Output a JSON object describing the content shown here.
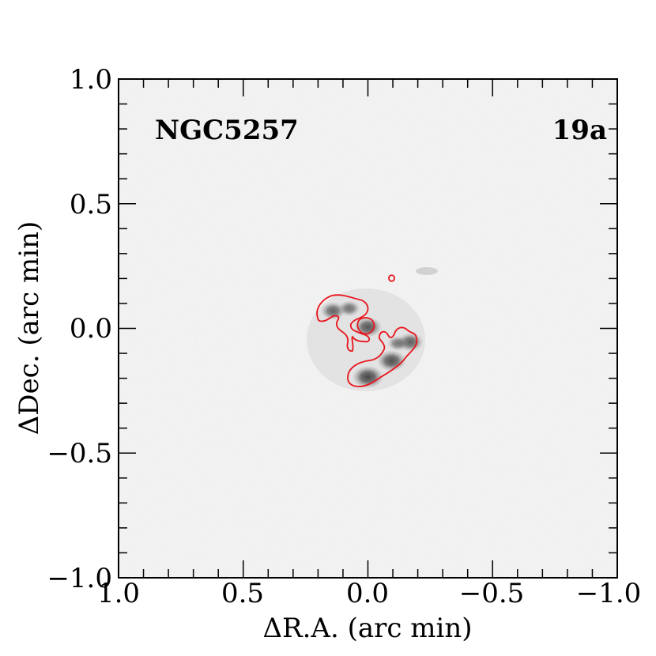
{
  "figure": {
    "object_name": "NGC5257",
    "panel_id": "19a",
    "x_axis": {
      "label": "ΔR.A. (arc min)",
      "range": [
        1.0,
        -1.0
      ],
      "ticks": [
        1.0,
        0.5,
        0.0,
        -0.5,
        -1.0
      ],
      "tick_labels": [
        "1.0",
        "0.5",
        "0.0",
        "−0.5",
        "−1.0"
      ]
    },
    "y_axis": {
      "label": "ΔDec. (arc min)",
      "range": [
        -1.0,
        1.0
      ],
      "ticks": [
        -1.0,
        -0.5,
        0.0,
        0.5,
        1.0
      ],
      "tick_labels": [
        "−1.0",
        "−0.5",
        "0.0",
        "0.5",
        "1.0"
      ]
    },
    "image": {
      "colormap": "grayscale inverted",
      "contour_color": "#e8141c",
      "emission_knots": [
        {
          "ra": 0.0,
          "dec": -0.195,
          "strength": 1.0
        },
        {
          "ra": -0.095,
          "dec": -0.13,
          "strength": 0.9
        },
        {
          "ra": -0.17,
          "dec": -0.055,
          "strength": 0.75
        },
        {
          "ra": -0.12,
          "dec": -0.06,
          "strength": 0.5
        },
        {
          "ra": 0.0,
          "dec": 0.005,
          "strength": 0.85
        },
        {
          "ra": 0.14,
          "dec": 0.07,
          "strength": 0.7
        },
        {
          "ra": 0.075,
          "dec": 0.08,
          "strength": 0.55
        }
      ]
    }
  }
}
